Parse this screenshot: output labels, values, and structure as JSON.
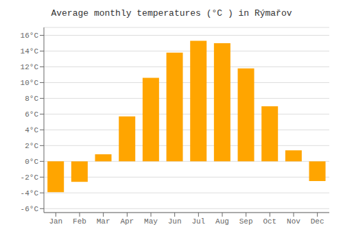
{
  "chart_data": {
    "type": "bar",
    "title": "Average monthly temperatures (°C ) in Rýmařov",
    "categories": [
      "Jan",
      "Feb",
      "Mar",
      "Apr",
      "May",
      "Jun",
      "Jul",
      "Aug",
      "Sep",
      "Oct",
      "Nov",
      "Dec"
    ],
    "values": [
      -3.9,
      -2.6,
      0.9,
      5.7,
      10.6,
      13.8,
      15.3,
      15.0,
      11.8,
      7.0,
      1.4,
      -2.5
    ],
    "color": "#FFA500",
    "ylim": [
      -6.5,
      17
    ],
    "yticks": [
      {
        "value": -6,
        "label": "-6°C"
      },
      {
        "value": -4,
        "label": "-4°C"
      },
      {
        "value": -2,
        "label": "-2°C"
      },
      {
        "value": 0,
        "label": "0°C"
      },
      {
        "value": 2,
        "label": "2°C"
      },
      {
        "value": 4,
        "label": "4°C"
      },
      {
        "value": 6,
        "label": "6°C"
      },
      {
        "value": 8,
        "label": "8°C"
      },
      {
        "value": 10,
        "label": "10°C"
      },
      {
        "value": 12,
        "label": "12°C"
      },
      {
        "value": 14,
        "label": "14°C"
      },
      {
        "value": 16,
        "label": "16°C"
      }
    ],
    "grid": true
  }
}
